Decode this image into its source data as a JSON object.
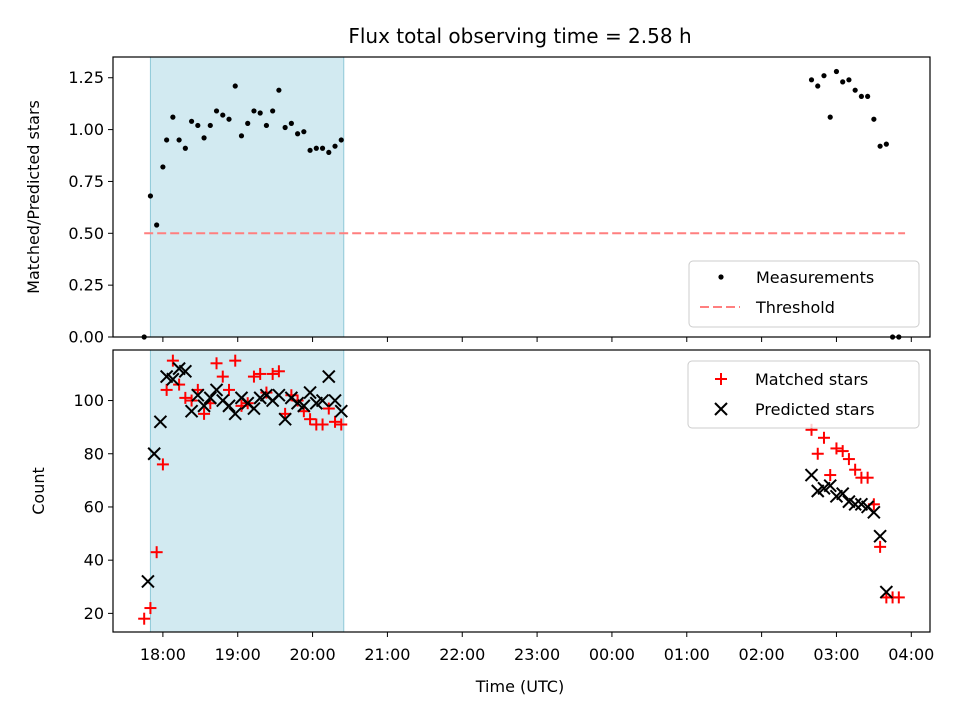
{
  "chart_data": [
    {
      "type": "scatter",
      "panel": "top",
      "title": "Flux total observing time = 2.58 h",
      "xlabel": "",
      "ylabel": "Matched/Predicted stars",
      "xlim": [
        "17:20",
        "04:15"
      ],
      "ylim": [
        0,
        1.35
      ],
      "yticks": [
        "0.00",
        "0.25",
        "0.50",
        "0.75",
        "1.00",
        "1.25"
      ],
      "shaded_span": {
        "from": "17:50",
        "to": "20:25",
        "color": "#add8e6"
      },
      "legend": {
        "placement": "lower-right",
        "entries": [
          "Measurements",
          "Threshold"
        ]
      },
      "series": [
        {
          "name": "Measurements",
          "marker": "dot",
          "color": "#000000",
          "points": [
            [
              "17:45",
              0.0
            ],
            [
              "17:50",
              0.68
            ],
            [
              "17:55",
              0.54
            ],
            [
              "18:00",
              0.82
            ],
            [
              "18:03",
              0.95
            ],
            [
              "18:08",
              1.06
            ],
            [
              "18:13",
              0.95
            ],
            [
              "18:18",
              0.91
            ],
            [
              "18:23",
              1.04
            ],
            [
              "18:28",
              1.02
            ],
            [
              "18:33",
              0.96
            ],
            [
              "18:38",
              1.02
            ],
            [
              "18:43",
              1.09
            ],
            [
              "18:48",
              1.07
            ],
            [
              "18:53",
              1.05
            ],
            [
              "18:58",
              1.21
            ],
            [
              "19:03",
              0.97
            ],
            [
              "19:08",
              1.03
            ],
            [
              "19:13",
              1.09
            ],
            [
              "19:18",
              1.08
            ],
            [
              "19:23",
              1.02
            ],
            [
              "19:28",
              1.09
            ],
            [
              "19:33",
              1.19
            ],
            [
              "19:38",
              1.01
            ],
            [
              "19:43",
              1.03
            ],
            [
              "19:48",
              0.98
            ],
            [
              "19:53",
              0.99
            ],
            [
              "19:58",
              0.9
            ],
            [
              "20:03",
              0.91
            ],
            [
              "20:08",
              0.91
            ],
            [
              "20:13",
              0.89
            ],
            [
              "20:18",
              0.92
            ],
            [
              "20:23",
              0.95
            ],
            [
              "02:40",
              1.24
            ],
            [
              "02:45",
              1.21
            ],
            [
              "02:50",
              1.26
            ],
            [
              "02:55",
              1.06
            ],
            [
              "03:00",
              1.28
            ],
            [
              "03:05",
              1.23
            ],
            [
              "03:10",
              1.24
            ],
            [
              "03:15",
              1.19
            ],
            [
              "03:20",
              1.16
            ],
            [
              "03:25",
              1.16
            ],
            [
              "03:30",
              1.05
            ],
            [
              "03:35",
              0.92
            ],
            [
              "03:40",
              0.93
            ],
            [
              "03:45",
              0.0
            ],
            [
              "03:50",
              0.0
            ]
          ]
        },
        {
          "name": "Threshold",
          "marker": "dashed-line",
          "color": "#ff7f7f",
          "points": [
            [
              "17:45",
              0.5
            ],
            [
              "03:55",
              0.5
            ]
          ]
        }
      ]
    },
    {
      "type": "scatter",
      "panel": "bottom",
      "title": "",
      "xlabel": "Time (UTC)",
      "ylabel": "Count",
      "xlim": [
        "17:20",
        "04:15"
      ],
      "ylim": [
        13,
        119
      ],
      "yticks": [
        "20",
        "40",
        "60",
        "80",
        "100"
      ],
      "xticks": [
        "18:00",
        "19:00",
        "20:00",
        "21:00",
        "22:00",
        "23:00",
        "00:00",
        "01:00",
        "02:00",
        "03:00",
        "04:00"
      ],
      "shaded_span": {
        "from": "17:50",
        "to": "20:25",
        "color": "#add8e6"
      },
      "legend": {
        "placement": "top-right",
        "entries": [
          "Matched stars",
          "Predicted stars"
        ]
      },
      "series": [
        {
          "name": "Matched stars",
          "marker": "plus",
          "color": "#ff0000",
          "points": [
            [
              "17:45",
              18
            ],
            [
              "17:50",
              22
            ],
            [
              "17:55",
              43
            ],
            [
              "18:00",
              76
            ],
            [
              "18:03",
              104
            ],
            [
              "18:08",
              115
            ],
            [
              "18:13",
              106
            ],
            [
              "18:18",
              101
            ],
            [
              "18:23",
              100
            ],
            [
              "18:28",
              104
            ],
            [
              "18:33",
              95
            ],
            [
              "18:38",
              99
            ],
            [
              "18:43",
              114
            ],
            [
              "18:48",
              109
            ],
            [
              "18:53",
              104
            ],
            [
              "18:58",
              115
            ],
            [
              "19:03",
              98
            ],
            [
              "19:08",
              99
            ],
            [
              "19:13",
              109
            ],
            [
              "19:18",
              110
            ],
            [
              "19:23",
              103
            ],
            [
              "19:28",
              110
            ],
            [
              "19:33",
              111
            ],
            [
              "19:38",
              95
            ],
            [
              "19:43",
              102
            ],
            [
              "19:48",
              100
            ],
            [
              "19:53",
              96
            ],
            [
              "19:58",
              93
            ],
            [
              "20:03",
              91
            ],
            [
              "20:08",
              91
            ],
            [
              "20:13",
              97
            ],
            [
              "20:18",
              92
            ],
            [
              "20:23",
              91
            ],
            [
              "02:40",
              89
            ],
            [
              "02:45",
              80
            ],
            [
              "02:50",
              86
            ],
            [
              "02:55",
              72
            ],
            [
              "03:00",
              82
            ],
            [
              "03:05",
              81
            ],
            [
              "03:10",
              78
            ],
            [
              "03:15",
              74
            ],
            [
              "03:20",
              71
            ],
            [
              "03:25",
              71
            ],
            [
              "03:30",
              61
            ],
            [
              "03:35",
              45
            ],
            [
              "03:40",
              26
            ],
            [
              "03:45",
              26
            ],
            [
              "03:50",
              26
            ]
          ]
        },
        {
          "name": "Predicted stars",
          "marker": "x",
          "color": "#000000",
          "points": [
            [
              "17:48",
              32
            ],
            [
              "17:53",
              80
            ],
            [
              "17:58",
              92
            ],
            [
              "18:03",
              109
            ],
            [
              "18:08",
              108
            ],
            [
              "18:13",
              112
            ],
            [
              "18:18",
              111
            ],
            [
              "18:23",
              96
            ],
            [
              "18:28",
              102
            ],
            [
              "18:33",
              98
            ],
            [
              "18:38",
              101
            ],
            [
              "18:43",
              104
            ],
            [
              "18:48",
              100
            ],
            [
              "18:53",
              98
            ],
            [
              "18:58",
              95
            ],
            [
              "19:03",
              101
            ],
            [
              "19:08",
              99
            ],
            [
              "19:13",
              97
            ],
            [
              "19:18",
              101
            ],
            [
              "19:23",
              102
            ],
            [
              "19:28",
              100
            ],
            [
              "19:33",
              102
            ],
            [
              "19:38",
              93
            ],
            [
              "19:43",
              101
            ],
            [
              "19:48",
              99
            ],
            [
              "19:53",
              98
            ],
            [
              "19:58",
              103
            ],
            [
              "20:03",
              99
            ],
            [
              "20:08",
              100
            ],
            [
              "20:13",
              109
            ],
            [
              "20:18",
              100
            ],
            [
              "20:23",
              96
            ],
            [
              "02:40",
              72
            ],
            [
              "02:45",
              66
            ],
            [
              "02:50",
              67
            ],
            [
              "02:55",
              68
            ],
            [
              "03:00",
              64
            ],
            [
              "03:05",
              65
            ],
            [
              "03:10",
              62
            ],
            [
              "03:15",
              61
            ],
            [
              "03:20",
              61
            ],
            [
              "03:25",
              60
            ],
            [
              "03:30",
              58
            ],
            [
              "03:35",
              49
            ],
            [
              "03:40",
              28
            ]
          ]
        }
      ]
    }
  ]
}
